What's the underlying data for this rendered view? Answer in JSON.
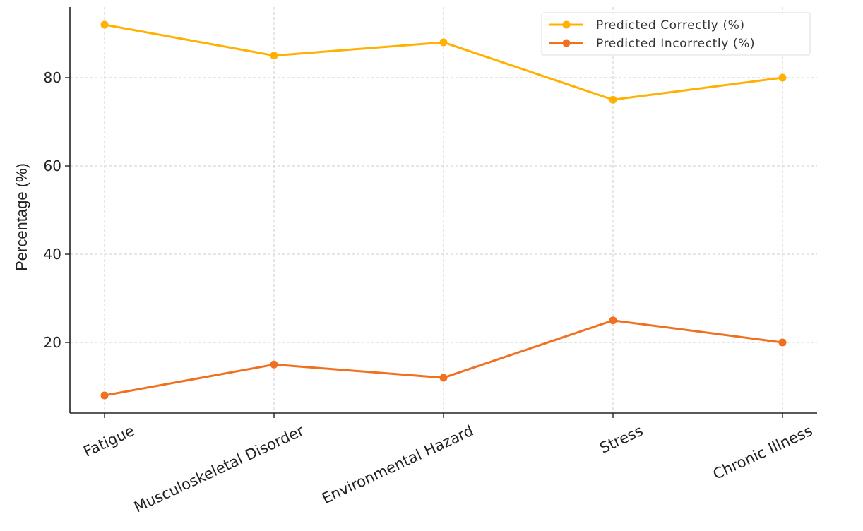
{
  "chart_data": {
    "type": "line",
    "categories": [
      "Fatigue",
      "Musculoskeletal Disorder",
      "Environmental Hazard",
      "Stress",
      "Chronic Illness"
    ],
    "series": [
      {
        "name": "Predicted Correctly (%)",
        "values": [
          92,
          85,
          88,
          75,
          80
        ],
        "color": "#ffb000"
      },
      {
        "name": "Predicted Incorrectly (%)",
        "values": [
          8,
          15,
          12,
          25,
          20
        ],
        "color": "#f07020"
      }
    ],
    "title": "",
    "xlabel": "",
    "ylabel": "Percentage (%)",
    "ylim": [
      4,
      96
    ],
    "yticks": [
      20,
      40,
      60,
      80
    ],
    "grid": true,
    "legend_position": "top-right"
  }
}
